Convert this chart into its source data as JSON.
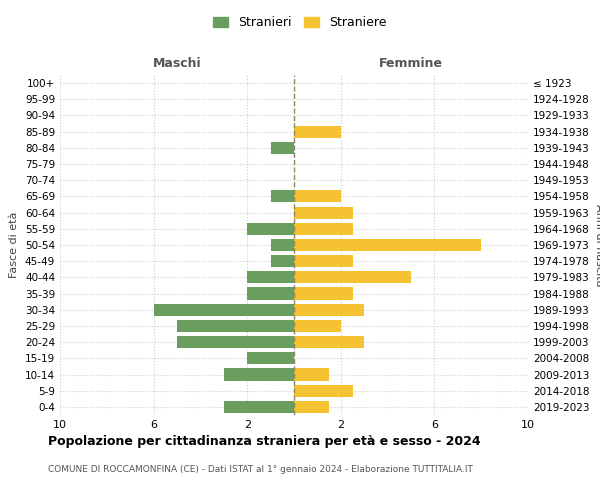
{
  "age_groups": [
    "0-4",
    "5-9",
    "10-14",
    "15-19",
    "20-24",
    "25-29",
    "30-34",
    "35-39",
    "40-44",
    "45-49",
    "50-54",
    "55-59",
    "60-64",
    "65-69",
    "70-74",
    "75-79",
    "80-84",
    "85-89",
    "90-94",
    "95-99",
    "100+"
  ],
  "birth_years": [
    "2019-2023",
    "2014-2018",
    "2009-2013",
    "2004-2008",
    "1999-2003",
    "1994-1998",
    "1989-1993",
    "1984-1988",
    "1979-1983",
    "1974-1978",
    "1969-1973",
    "1964-1968",
    "1959-1963",
    "1954-1958",
    "1949-1953",
    "1944-1948",
    "1939-1943",
    "1934-1938",
    "1929-1933",
    "1924-1928",
    "≤ 1923"
  ],
  "maschi": [
    3,
    0,
    3,
    2,
    5,
    5,
    6,
    2,
    2,
    1,
    1,
    2,
    0,
    1,
    0,
    0,
    1,
    0,
    0,
    0,
    0
  ],
  "femmine": [
    1.5,
    2.5,
    1.5,
    0,
    3,
    2,
    3,
    2.5,
    5,
    2.5,
    8,
    2.5,
    2.5,
    2,
    0,
    0,
    0,
    2,
    0,
    0,
    0
  ],
  "maschi_color": "#6a9e5e",
  "femmine_color": "#f5c231",
  "background_color": "#ffffff",
  "grid_color": "#cccccc",
  "centerline_color": "#888866",
  "title": "Popolazione per cittadinanza straniera per età e sesso - 2024",
  "subtitle": "COMUNE DI ROCCAMONFINA (CE) - Dati ISTAT al 1° gennaio 2024 - Elaborazione TUTTITALIA.IT",
  "xlabel_left": "Maschi",
  "xlabel_right": "Femmine",
  "ylabel": "Fasce di età",
  "ylabel_right": "Anni di nascita",
  "legend_maschi": "Stranieri",
  "legend_femmine": "Straniere",
  "xlim": 10,
  "title_fontsize": 9,
  "subtitle_fontsize": 6.5
}
